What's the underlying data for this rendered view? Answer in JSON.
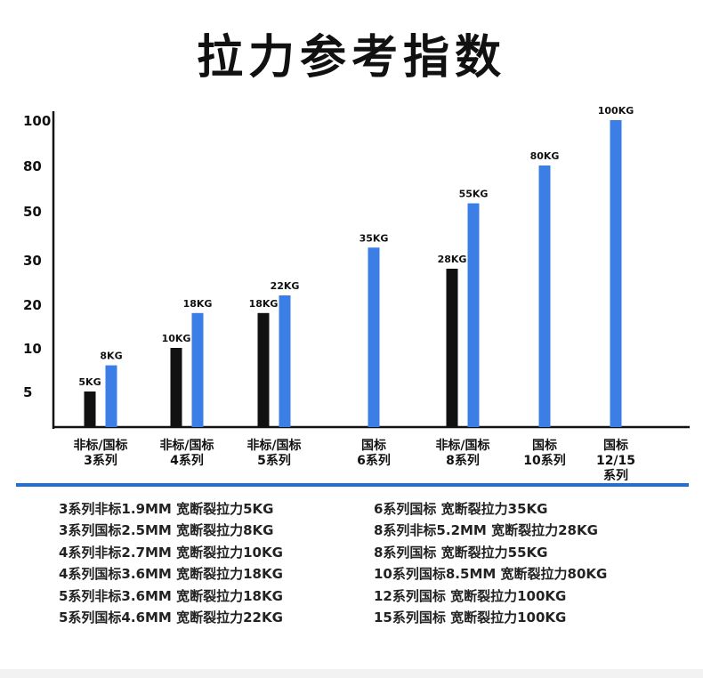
{
  "title": "拉力参考指数",
  "colors": {
    "black_bar": "#111111",
    "blue_bar": "#3a7ee6",
    "rule": "#1f6fd6"
  },
  "chart_data": {
    "type": "bar",
    "title": "拉力参考指数",
    "y_scale": "ordinal-ticks",
    "y_ticks": [
      5,
      10,
      20,
      30,
      50,
      80,
      100
    ],
    "legend": "none",
    "grid": false,
    "bars": [
      {
        "group": 0,
        "color": "black",
        "value": 5,
        "label": "5KG"
      },
      {
        "group": 0,
        "color": "blue",
        "value": 8,
        "label": "8KG"
      },
      {
        "group": 1,
        "color": "black",
        "value": 10,
        "label": "10KG"
      },
      {
        "group": 1,
        "color": "blue",
        "value": 18,
        "label": "18KG"
      },
      {
        "group": 2,
        "color": "black",
        "value": 18,
        "label": "18KG"
      },
      {
        "group": 2,
        "color": "blue",
        "value": 22,
        "label": "22KG"
      },
      {
        "group": 3,
        "color": "blue",
        "value": 35,
        "label": "35KG"
      },
      {
        "group": 4,
        "color": "black",
        "value": 28,
        "label": "28KG"
      },
      {
        "group": 4,
        "color": "blue",
        "value": 55,
        "label": "55KG"
      },
      {
        "group": 5,
        "color": "blue",
        "value": 80,
        "label": "80KG"
      },
      {
        "group": 6,
        "color": "blue",
        "value": 100,
        "label": "100KG"
      }
    ],
    "categories": [
      [
        "非标/国标",
        "3系列"
      ],
      [
        "非标/国标",
        "4系列"
      ],
      [
        "非标/国标",
        "5系列"
      ],
      [
        "国标",
        "6系列"
      ],
      [
        "非标/国标",
        "8系列"
      ],
      [
        "国标",
        "10系列"
      ],
      [
        "国标",
        "12/15",
        "系列"
      ]
    ]
  },
  "notes_left": [
    "3系列非标1.9MM 宽断裂拉力5KG",
    "3系列国标2.5MM 宽断裂拉力8KG",
    "4系列非标2.7MM 宽断裂拉力10KG",
    "4系列国标3.6MM 宽断裂拉力18KG",
    "5系列非标3.6MM 宽断裂拉力18KG",
    "5系列国标4.6MM 宽断裂拉力22KG"
  ],
  "notes_right": [
    "6系列国标 宽断裂拉力35KG",
    "8系列非标5.2MM 宽断裂拉力28KG",
    "8系列国标 宽断裂拉力55KG",
    "10系列国标8.5MM 宽断裂拉力80KG",
    "12系列国标 宽断裂拉力100KG",
    "15系列国标 宽断裂拉力100KG"
  ]
}
